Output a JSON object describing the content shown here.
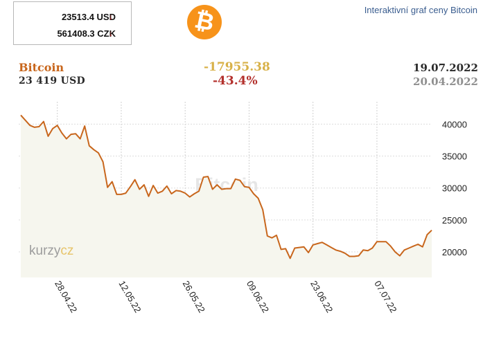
{
  "price_box": {
    "usd": "23513.4 USD",
    "czk": "561408.3 CZK",
    "trend_icon": "down-arrow-icon",
    "trend_color": "#c0241f"
  },
  "logo": {
    "symbol": "₿",
    "icon": "bitcoin-logo-icon",
    "color": "#f7931a"
  },
  "link_text": "Interaktivní graf ceny Bitcoin",
  "header": {
    "name": "Bitcoin",
    "price": "23 419 USD",
    "change_abs": "-17955.38",
    "change_pct": "-43.4%",
    "date_end": "19.07.2022",
    "date_start": "20.04.2022"
  },
  "watermark": {
    "center": "Bitcoin",
    "brand_a": "kurzy",
    "brand_b": "cz"
  },
  "chart_data": {
    "type": "area",
    "title": "",
    "xlabel": "",
    "ylabel": "",
    "ylim": [
      16000,
      43500
    ],
    "grid": true,
    "line_color": "#c8661c",
    "fill_color": "#f6f6ee",
    "y_ticks": [
      20000,
      25000,
      30000,
      35000,
      40000
    ],
    "x_ticks": [
      "28.04.22",
      "12.05.22",
      "26.05.22",
      "09.06.22",
      "23.06.22",
      "07.07.22"
    ],
    "x": [
      "20.04.22",
      "21.04.22",
      "22.04.22",
      "23.04.22",
      "24.04.22",
      "25.04.22",
      "26.04.22",
      "27.04.22",
      "28.04.22",
      "29.04.22",
      "30.04.22",
      "01.05.22",
      "02.05.22",
      "03.05.22",
      "04.05.22",
      "05.05.22",
      "06.05.22",
      "07.05.22",
      "08.05.22",
      "09.05.22",
      "10.05.22",
      "11.05.22",
      "12.05.22",
      "13.05.22",
      "14.05.22",
      "15.05.22",
      "16.05.22",
      "17.05.22",
      "18.05.22",
      "19.05.22",
      "20.05.22",
      "21.05.22",
      "22.05.22",
      "23.05.22",
      "24.05.22",
      "25.05.22",
      "26.05.22",
      "27.05.22",
      "28.05.22",
      "29.05.22",
      "30.05.22",
      "31.05.22",
      "01.06.22",
      "02.06.22",
      "03.06.22",
      "04.06.22",
      "05.06.22",
      "06.06.22",
      "07.06.22",
      "08.06.22",
      "09.06.22",
      "10.06.22",
      "11.06.22",
      "12.06.22",
      "13.06.22",
      "14.06.22",
      "15.06.22",
      "16.06.22",
      "17.06.22",
      "18.06.22",
      "19.06.22",
      "20.06.22",
      "21.06.22",
      "22.06.22",
      "23.06.22",
      "24.06.22",
      "25.06.22",
      "26.06.22",
      "27.06.22",
      "28.06.22",
      "29.06.22",
      "30.06.22",
      "01.07.22",
      "02.07.22",
      "03.07.22",
      "04.07.22",
      "05.07.22",
      "06.07.22",
      "07.07.22",
      "08.07.22",
      "09.07.22",
      "10.07.22",
      "11.07.22",
      "12.07.22",
      "13.07.22",
      "14.07.22",
      "15.07.22",
      "16.07.22",
      "17.07.22",
      "18.07.22",
      "19.07.22"
    ],
    "series": [
      {
        "values": [
          41400,
          40600,
          39800,
          39500,
          39600,
          40400,
          38100,
          39300,
          39800,
          38600,
          37700,
          38400,
          38500,
          37700,
          39700,
          36600,
          36000,
          35500,
          34100,
          30100,
          31000,
          29000,
          29000,
          29200,
          30200,
          31300,
          29800,
          30500,
          28700,
          30400,
          29200,
          29500,
          30300,
          29100,
          29600,
          29500,
          29200,
          28600,
          29100,
          29500,
          31700,
          31800,
          29800,
          30500,
          29800,
          29900,
          29900,
          31400,
          31200,
          30200,
          30100,
          29100,
          28400,
          26600,
          22500,
          22200,
          22600,
          20400,
          20500,
          19000,
          20600,
          20700,
          20800,
          19900,
          21100,
          21300,
          21500,
          21100,
          20700,
          20300,
          20100,
          19800,
          19300,
          19300,
          19400,
          20300,
          20200,
          20600,
          21600,
          21600,
          21600,
          20900,
          20000,
          19400,
          20300,
          20600,
          20900,
          21200,
          20800,
          22700,
          23400
        ]
      }
    ]
  }
}
